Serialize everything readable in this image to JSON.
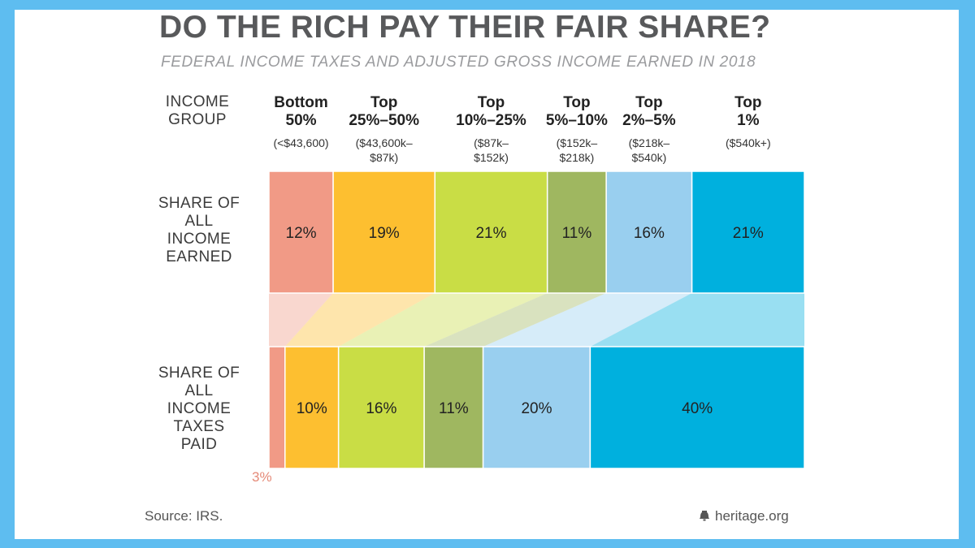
{
  "title": "DO THE RICH PAY THEIR FAIR SHARE?",
  "subtitle": "FEDERAL INCOME TAXES AND ADJUSTED GROSS INCOME EARNED IN 2018",
  "row_labels": {
    "group": "INCOME GROUP",
    "income": "SHARE OF ALL INCOME EARNED",
    "taxes": "SHARE OF ALL INCOME TAXES PAID"
  },
  "groups": [
    {
      "label": "Bottom 50%",
      "range": "(<$43,600)"
    },
    {
      "label": "Top 25%–50%",
      "range": "($43,600k– $87k)"
    },
    {
      "label": "Top 10%–25%",
      "range": "($87k– $152k)"
    },
    {
      "label": "Top 5%–10%",
      "range": "($152k– $218k)"
    },
    {
      "label": "Top 2%–5%",
      "range": "($218k– $540k)"
    },
    {
      "label": "Top 1%",
      "range": "($540k+)"
    }
  ],
  "chart_data": {
    "type": "bar",
    "title": "DO THE RICH PAY THEIR FAIR SHARE?",
    "subtitle": "FEDERAL INCOME TAXES AND ADJUSTED GROSS INCOME EARNED IN 2018",
    "categories": [
      "Bottom 50%",
      "Top 25%–50%",
      "Top 10%–25%",
      "Top 5%–10%",
      "Top 2%–5%",
      "Top 1%"
    ],
    "series": [
      {
        "name": "SHARE OF ALL INCOME EARNED",
        "values": [
          12,
          19,
          21,
          11,
          16,
          21
        ]
      },
      {
        "name": "SHARE OF ALL INCOME TAXES PAID",
        "values": [
          3,
          10,
          16,
          11,
          20,
          40
        ]
      }
    ],
    "colors": [
      "#f19a86",
      "#fdbf30",
      "#c9dd45",
      "#9fb760",
      "#99cfef",
      "#00b0de"
    ],
    "value_suffix": "%",
    "stacked_horizontal": true
  },
  "source": "Source: IRS.",
  "brand": "heritage.org"
}
